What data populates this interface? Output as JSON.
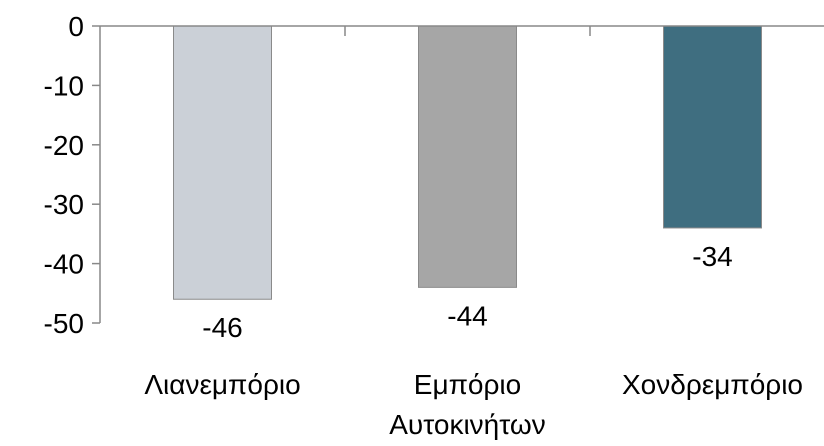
{
  "chart_data": {
    "type": "bar",
    "categories": [
      [
        "Λιανεμπόριο"
      ],
      [
        "Εμπόριο",
        "Αυτοκινήτων"
      ],
      [
        "Χονδρεμπόριο"
      ]
    ],
    "values": [
      -46,
      -44,
      -34
    ],
    "data_labels": [
      "-46",
      "-44",
      "-34"
    ],
    "colors": [
      "#CBD0D7",
      "#A6A6A6",
      "#3F6E80"
    ],
    "ylim": [
      -50,
      0
    ],
    "yticks": [
      0,
      -10,
      -20,
      -30,
      -40,
      -50
    ],
    "ytick_labels": [
      "0",
      "-10",
      "-20",
      "-30",
      "-40",
      "-50"
    ],
    "grid": false,
    "legend": "none"
  }
}
